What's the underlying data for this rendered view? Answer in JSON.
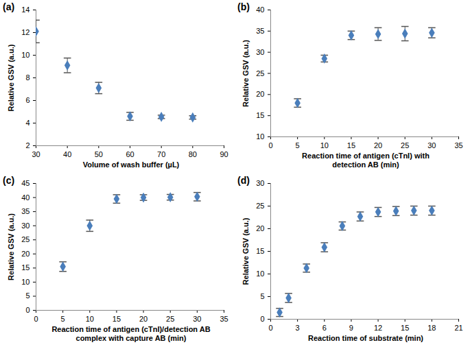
{
  "chart_data": [
    {
      "type": "scatter",
      "title": "(a)",
      "x_label": "Volume of wash buffer (µL)",
      "y_label": "Relative GSV (a.u.)",
      "x": [
        30,
        40,
        50,
        60,
        70,
        80
      ],
      "values": [
        12.1,
        9.1,
        7.1,
        4.6,
        4.55,
        4.5
      ],
      "errors": [
        1.0,
        0.65,
        0.5,
        0.35,
        0.15,
        0.15
      ],
      "xlim": [
        30,
        90
      ],
      "xticks": [
        30,
        40,
        50,
        60,
        70,
        80,
        90
      ],
      "ylim": [
        2,
        14
      ],
      "yticks": [
        2,
        4,
        6,
        8,
        10,
        12,
        14
      ],
      "color": "#4a7ebb",
      "marker": "diamond",
      "grid": false
    },
    {
      "type": "scatter",
      "title": "(b)",
      "x_label": "Reaction time of antigen (cTnI) with\ndetection AB (min)",
      "y_label": "Relative GSV (a.u.)",
      "x": [
        5,
        10,
        15,
        20,
        25,
        30
      ],
      "values": [
        18,
        28.5,
        34,
        34.3,
        34.4,
        34.6
      ],
      "errors": [
        1.0,
        0.8,
        1.0,
        1.5,
        1.7,
        1.2
      ],
      "xlim": [
        0,
        35
      ],
      "xticks": [
        0,
        5,
        10,
        15,
        20,
        25,
        30,
        35
      ],
      "ylim": [
        10,
        40
      ],
      "yticks": [
        10,
        15,
        20,
        25,
        30,
        35,
        40
      ],
      "color": "#4a7ebb",
      "marker": "diamond",
      "grid": false
    },
    {
      "type": "scatter",
      "title": "(c)",
      "x_label": "Reaction time of antigen (cTnI)/detection AB\ncomplex with capture AB (min)",
      "y_label": "Relative GSV (a.u.)",
      "x": [
        5,
        10,
        15,
        20,
        25,
        30
      ],
      "values": [
        15.5,
        30,
        39.5,
        40,
        40.1,
        40.3
      ],
      "errors": [
        1.7,
        2.0,
        1.5,
        1.0,
        1.0,
        1.5
      ],
      "xlim": [
        0,
        35
      ],
      "xticks": [
        0,
        5,
        10,
        15,
        20,
        25,
        30,
        35
      ],
      "ylim": [
        0,
        45
      ],
      "yticks": [
        0,
        5,
        10,
        15,
        20,
        25,
        30,
        35,
        40,
        45
      ],
      "color": "#4a7ebb",
      "marker": "diamond",
      "grid": false
    },
    {
      "type": "scatter",
      "title": "(d)",
      "x_label": "Reaction time of substrate (min)",
      "y_label": "Relative GSV (a.u.)",
      "x": [
        1,
        2,
        4,
        6,
        8,
        10,
        12,
        14,
        16,
        18
      ],
      "values": [
        1.5,
        4.7,
        11.3,
        15.9,
        20.6,
        22.7,
        23.7,
        23.9,
        24,
        24
      ],
      "errors": [
        0.9,
        1.0,
        0.9,
        1.0,
        0.9,
        1.0,
        1.0,
        1.0,
        1.0,
        1.0
      ],
      "xlim": [
        0,
        21
      ],
      "xticks": [
        0,
        3,
        6,
        9,
        12,
        15,
        18,
        21
      ],
      "ylim": [
        0,
        30
      ],
      "yticks": [
        0,
        5,
        10,
        15,
        20,
        25,
        30
      ],
      "color": "#4a7ebb",
      "marker": "diamond",
      "grid": false
    }
  ]
}
